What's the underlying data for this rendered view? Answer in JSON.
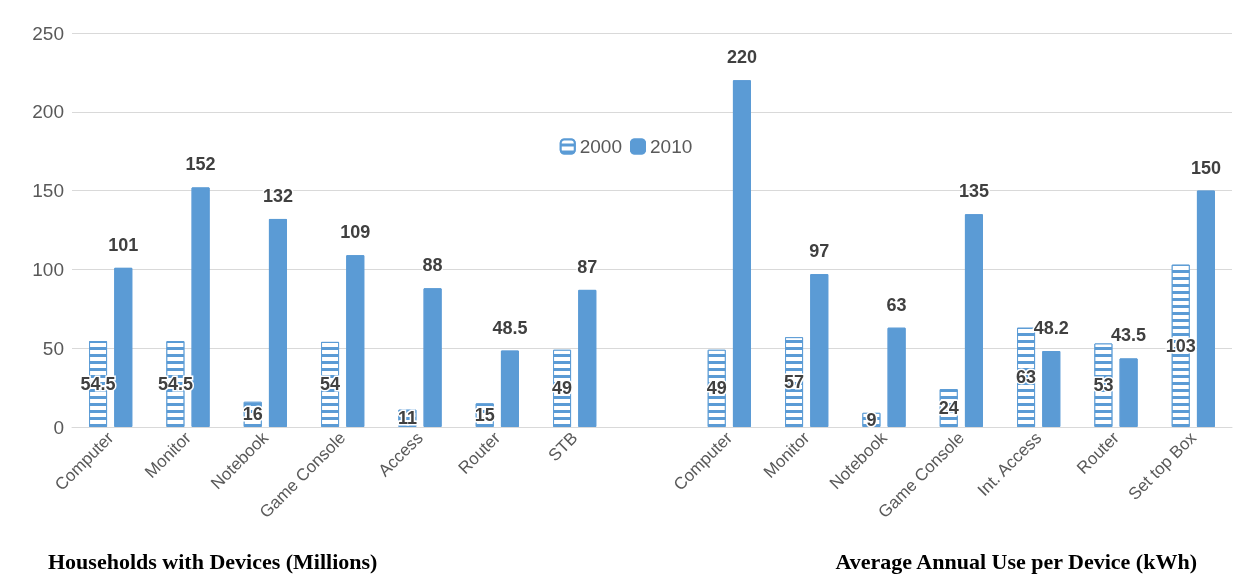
{
  "chart_data": {
    "type": "bar",
    "categories": [
      "Computer",
      "Monitor",
      "Notebook",
      "Game Console",
      "Access",
      "Router",
      "STB",
      null,
      "Computer",
      "Monitor",
      "Notebook",
      "Game Console",
      "Int. Access",
      "Router",
      "Set top Box"
    ],
    "series": [
      {
        "name": "2000",
        "color": "#5b9bd5",
        "values": [
          54.5,
          54.5,
          16,
          54,
          11,
          15,
          49,
          null,
          49,
          57,
          9,
          24,
          63,
          53,
          103
        ]
      },
      {
        "name": "2010",
        "color": "#5b9bd5",
        "values": [
          101,
          152,
          132,
          109,
          88,
          48.5,
          87,
          null,
          220,
          97,
          63,
          135,
          48.2,
          43.5,
          150
        ]
      }
    ],
    "ylim": [
      0,
      250
    ],
    "yticks": [
      0,
      50,
      100,
      150,
      200,
      250
    ],
    "grid": "y",
    "legend": "top",
    "data_labels": true,
    "annotations": [
      "Households with Devices (Millions)",
      "Average Annual Use per Device (kWh)"
    ]
  }
}
